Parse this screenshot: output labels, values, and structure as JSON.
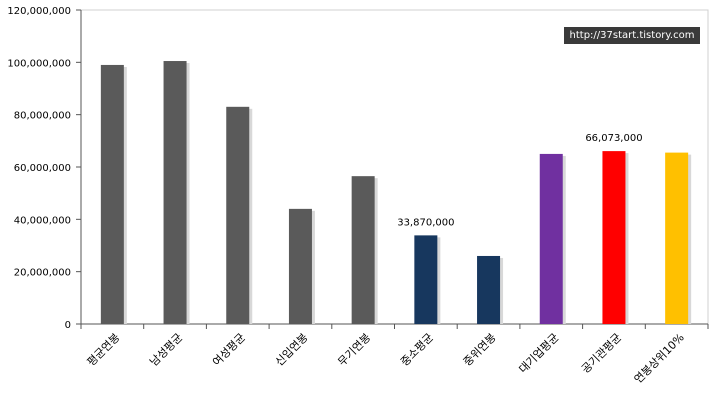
{
  "chart_data": {
    "type": "bar",
    "categories": [
      "평균연봉",
      "남성평균",
      "여성평균",
      "신입연봉",
      "무기연봉",
      "중소평균",
      "중위연봉",
      "대기업평균",
      "공기관평균",
      "연봉상위10%"
    ],
    "values": [
      99000000,
      100500000,
      83000000,
      44000000,
      56500000,
      33870000,
      26000000,
      65000000,
      66073000,
      65500000
    ],
    "colors": [
      "#5a5a5a",
      "#5a5a5a",
      "#5a5a5a",
      "#5a5a5a",
      "#5a5a5a",
      "#17375e",
      "#17375e",
      "#7030a0",
      "#ff0000",
      "#ffc000"
    ],
    "data_labels": [
      {
        "index": 5,
        "text": "33,870,000"
      },
      {
        "index": 8,
        "text": "66,073,000"
      }
    ],
    "yticks": [
      "0",
      "20,000,000",
      "40,000,000",
      "60,000,000",
      "80,000,000",
      "100,000,000",
      "120,000,000"
    ],
    "ylim": [
      0,
      120000000
    ],
    "grid": false,
    "legend": "none",
    "title": "",
    "xlabel": "",
    "ylabel": ""
  },
  "watermark": "http://37start.tistory.com"
}
